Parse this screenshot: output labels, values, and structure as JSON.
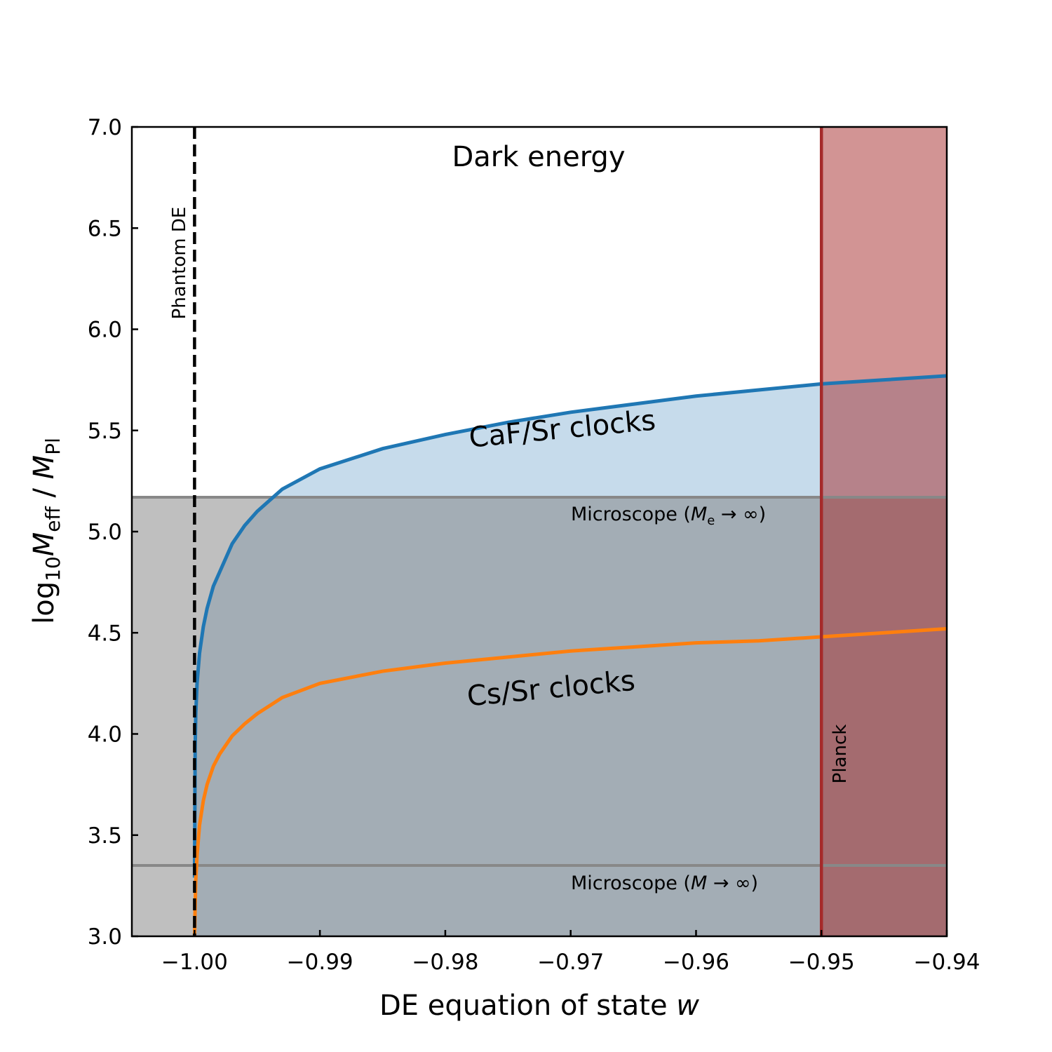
{
  "chart_data": {
    "type": "line",
    "title": "Dark energy",
    "xlabel": "DE equation of state w",
    "ylabel": "log10 Meff / MPl",
    "xlim": [
      -1.005,
      -0.94
    ],
    "ylim": [
      3.0,
      7.0
    ],
    "grid": false,
    "xticks": [
      -1.0,
      -0.99,
      -0.98,
      -0.97,
      -0.96,
      -0.95,
      -0.94
    ],
    "xtick_labels": [
      "−1.00",
      "−0.99",
      "−0.98",
      "−0.97",
      "−0.96",
      "−0.95",
      "−0.94"
    ],
    "yticks": [
      3.0,
      3.5,
      4.0,
      4.5,
      5.0,
      5.5,
      6.0,
      6.5,
      7.0
    ],
    "ytick_labels": [
      "3.0",
      "3.5",
      "4.0",
      "4.5",
      "5.0",
      "5.5",
      "6.0",
      "6.5",
      "7.0"
    ],
    "series": [
      {
        "name": "CaF/Sr clocks",
        "color": "#1f77b4",
        "fill_color": "#c6dbeb",
        "x": [
          -1.0,
          -0.99995,
          -0.9999,
          -0.9998,
          -0.9996,
          -0.9993,
          -0.999,
          -0.9985,
          -0.998,
          -0.997,
          -0.996,
          -0.995,
          -0.993,
          -0.99,
          -0.985,
          -0.98,
          -0.975,
          -0.97,
          -0.965,
          -0.96,
          -0.955,
          -0.95,
          -0.945,
          -0.94
        ],
        "y": [
          3.29,
          3.94,
          4.1,
          4.25,
          4.4,
          4.53,
          4.62,
          4.73,
          4.8,
          4.94,
          5.03,
          5.1,
          5.21,
          5.31,
          5.41,
          5.48,
          5.54,
          5.59,
          5.63,
          5.67,
          5.7,
          5.73,
          5.75,
          5.77
        ]
      },
      {
        "name": "Cs/Sr clocks",
        "color": "#ff7f0e",
        "x": [
          -1.0,
          -0.99995,
          -0.9999,
          -0.9998,
          -0.9996,
          -0.9993,
          -0.999,
          -0.9985,
          -0.998,
          -0.997,
          -0.996,
          -0.995,
          -0.993,
          -0.99,
          -0.985,
          -0.98,
          -0.975,
          -0.97,
          -0.965,
          -0.96,
          -0.955,
          -0.95,
          -0.945,
          -0.94
        ],
        "y": [
          3.0,
          3.15,
          3.28,
          3.4,
          3.55,
          3.67,
          3.75,
          3.84,
          3.9,
          3.99,
          4.05,
          4.1,
          4.18,
          4.25,
          4.31,
          4.35,
          4.38,
          4.41,
          4.43,
          4.45,
          4.46,
          4.48,
          4.5,
          4.52
        ]
      }
    ],
    "reference_lines": [
      {
        "name": "Phantom DE",
        "orientation": "vertical",
        "value": -1.0,
        "style": "dashed",
        "color": "#000000",
        "label": "Phantom DE"
      },
      {
        "name": "Planck",
        "orientation": "vertical",
        "value": -0.95,
        "style": "solid",
        "color": "#a52a2a",
        "label": "Planck"
      },
      {
        "name": "Microscope (Me → ∞)",
        "orientation": "horizontal",
        "value": 5.17,
        "color": "#888888"
      },
      {
        "name": "Microscope (M → ∞)",
        "orientation": "horizontal",
        "value": 3.35,
        "color": "#888888"
      }
    ],
    "regions": [
      {
        "name": "Microscope excluded",
        "y_range": [
          3.0,
          5.17
        ],
        "x_range": [
          -1.005,
          -0.94
        ],
        "color": "#808080",
        "alpha": 0.5
      },
      {
        "name": "Planck excluded",
        "x_range": [
          -0.95,
          -0.94
        ],
        "y_range": [
          3.0,
          7.0
        ],
        "color": "#a52a2a",
        "alpha": 0.5
      }
    ],
    "annotations": {
      "title_text": "Dark energy",
      "caf_label": "CaF/Sr clocks",
      "cs_label": "Cs/Sr clocks",
      "phantom_label": "Phantom DE",
      "planck_label": "Planck",
      "microscope_me_prefix": "Microscope (",
      "microscope_me_var": "M",
      "microscope_me_sub": "e",
      "microscope_me_suffix": " → ∞)",
      "microscope_m_prefix": "Microscope (",
      "microscope_m_var": "M",
      "microscope_m_suffix": " → ∞)"
    },
    "axis_labels": {
      "x_text": "DE equation of state ",
      "x_var": "w",
      "y_log": "log",
      "y_log_sub": "10",
      "y_m1": "M",
      "y_m1_sub": "eff",
      "y_sep": " / ",
      "y_m2": "M",
      "y_m2_sub": "Pl"
    }
  }
}
